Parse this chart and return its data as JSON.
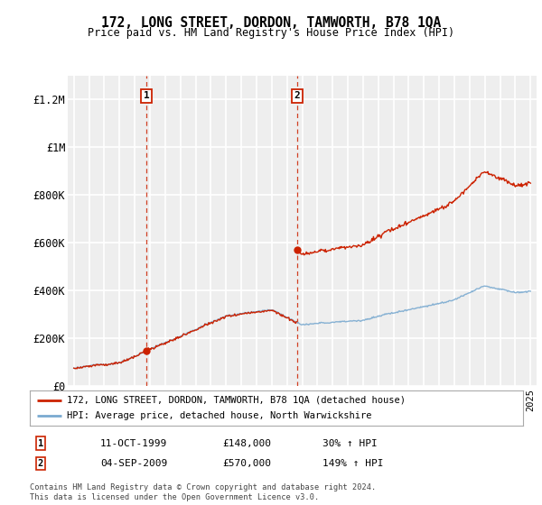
{
  "title": "172, LONG STREET, DORDON, TAMWORTH, B78 1QA",
  "subtitle": "Price paid vs. HM Land Registry's House Price Index (HPI)",
  "legend_line1": "172, LONG STREET, DORDON, TAMWORTH, B78 1QA (detached house)",
  "legend_line2": "HPI: Average price, detached house, North Warwickshire",
  "sale1_date": "11-OCT-1999",
  "sale1_price": "£148,000",
  "sale1_hpi": "30% ↑ HPI",
  "sale1_year": 1999.78,
  "sale1_value": 148000,
  "sale2_date": "04-SEP-2009",
  "sale2_price": "£570,000",
  "sale2_hpi": "149% ↑ HPI",
  "sale2_year": 2009.67,
  "sale2_value": 570000,
  "footer": "Contains HM Land Registry data © Crown copyright and database right 2024.\nThis data is licensed under the Open Government Licence v3.0.",
  "ylim": [
    0,
    1300000
  ],
  "yticks": [
    0,
    200000,
    400000,
    600000,
    800000,
    1000000,
    1200000
  ],
  "ytick_labels": [
    "£0",
    "£200K",
    "£400K",
    "£600K",
    "£800K",
    "£1M",
    "£1.2M"
  ],
  "hpi_color": "#7aaad0",
  "sale_color": "#cc2200",
  "bg_color": "#ffffff",
  "plot_bg_color": "#eeeeee",
  "grid_color": "#ffffff",
  "vline_color": "#cc2200",
  "xlim_left": 1994.6,
  "xlim_right": 2025.4
}
